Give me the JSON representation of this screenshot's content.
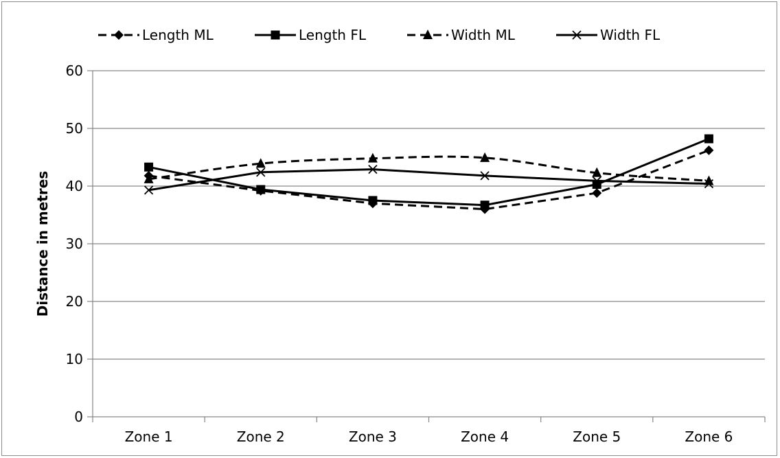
{
  "chart_data": {
    "type": "line",
    "categories": [
      "Zone 1",
      "Zone 2",
      "Zone 3",
      "Zone 4",
      "Zone 5",
      "Zone 6"
    ],
    "series": [
      {
        "name": "Length ML",
        "values": [
          41.8,
          39.2,
          37.0,
          36.0,
          38.8,
          46.2
        ],
        "line_style": "dashed",
        "marker": "diamond",
        "smooth": false
      },
      {
        "name": "Length FL",
        "values": [
          43.3,
          39.4,
          37.5,
          36.7,
          40.3,
          48.2
        ],
        "line_style": "solid",
        "marker": "square",
        "smooth": false
      },
      {
        "name": "Width ML",
        "values": [
          41.2,
          43.9,
          44.8,
          44.9,
          42.3,
          40.9
        ],
        "line_style": "dashed",
        "marker": "triangle",
        "smooth": true
      },
      {
        "name": "Width FL",
        "values": [
          39.3,
          42.4,
          42.9,
          41.8,
          40.9,
          40.4
        ],
        "line_style": "solid",
        "marker": "x",
        "smooth": false
      }
    ],
    "xlabel": "",
    "ylabel": "Distance in metres",
    "ylim": [
      0,
      60
    ],
    "yticks": [
      "0",
      "10",
      "20",
      "30",
      "40",
      "50",
      "60"
    ],
    "grid": "horizontal",
    "legend_position": "top",
    "line_color": "#000000",
    "grid_color": "#868686"
  }
}
